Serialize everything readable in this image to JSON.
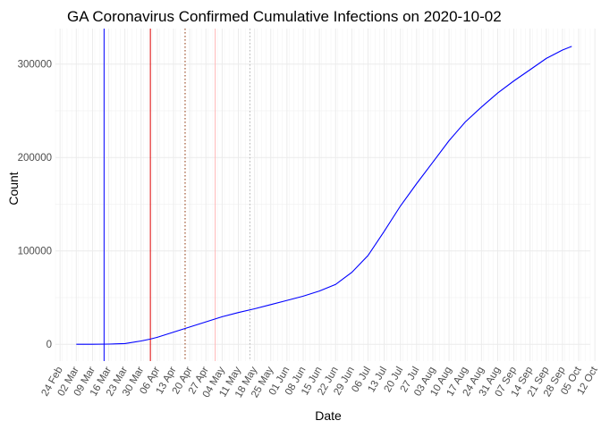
{
  "chart_data": {
    "type": "line",
    "title": "GA Coronavirus Confirmed Cumulative Infections on 2020-10-02",
    "xlabel": "Date",
    "ylabel": "Count",
    "x_ticks": [
      "24 Feb",
      "02 Mar",
      "09 Mar",
      "16 Mar",
      "23 Mar",
      "30 Mar",
      "06 Apr",
      "13 Apr",
      "20 Apr",
      "27 Apr",
      "04 May",
      "11 May",
      "18 May",
      "25 May",
      "01 Jun",
      "08 Jun",
      "15 Jun",
      "22 Jun",
      "29 Jun",
      "06 Jul",
      "13 Jul",
      "20 Jul",
      "27 Jul",
      "03 Aug",
      "10 Aug",
      "17 Aug",
      "24 Aug",
      "31 Aug",
      "07 Sep",
      "14 Sep",
      "21 Sep",
      "28 Sep",
      "05 Oct",
      "12 Oct"
    ],
    "xlim": [
      "2020-02-22",
      "2020-10-10"
    ],
    "y_ticks": [
      0,
      100000,
      200000,
      300000
    ],
    "y_tick_labels": [
      "0",
      "100000",
      "200000",
      "300000"
    ],
    "ylim": [
      -18000,
      338000
    ],
    "grid": true,
    "legend": "none",
    "series": [
      {
        "color": "#0000ff",
        "points": [
          [
            "2020-03-02",
            0
          ],
          [
            "2020-03-09",
            0
          ],
          [
            "2020-03-16",
            200
          ],
          [
            "2020-03-23",
            800
          ],
          [
            "2020-03-30",
            3500
          ],
          [
            "2020-04-03",
            5500
          ],
          [
            "2020-04-06",
            7500
          ],
          [
            "2020-04-13",
            13000
          ],
          [
            "2020-04-20",
            18500
          ],
          [
            "2020-04-27",
            24000
          ],
          [
            "2020-05-04",
            29500
          ],
          [
            "2020-05-11",
            34000
          ],
          [
            "2020-05-18",
            38000
          ],
          [
            "2020-05-25",
            42500
          ],
          [
            "2020-06-01",
            47000
          ],
          [
            "2020-06-08",
            51500
          ],
          [
            "2020-06-15",
            57000
          ],
          [
            "2020-06-22",
            64000
          ],
          [
            "2020-06-29",
            77000
          ],
          [
            "2020-07-06",
            95000
          ],
          [
            "2020-07-13",
            121000
          ],
          [
            "2020-07-20",
            148000
          ],
          [
            "2020-07-27",
            172000
          ],
          [
            "2020-08-03",
            195000
          ],
          [
            "2020-08-10",
            218000
          ],
          [
            "2020-08-17",
            238000
          ],
          [
            "2020-08-24",
            254000
          ],
          [
            "2020-08-31",
            269000
          ],
          [
            "2020-09-07",
            282000
          ],
          [
            "2020-09-14",
            294000
          ],
          [
            "2020-09-21",
            306000
          ],
          [
            "2020-09-28",
            315000
          ],
          [
            "2020-10-02",
            319000
          ]
        ]
      }
    ],
    "vertical_lines": [
      {
        "x": "2020-03-14",
        "color": "#0000ff",
        "style": "solid"
      },
      {
        "x": "2020-04-03",
        "color": "#dd0000",
        "style": "solid"
      },
      {
        "x": "2020-04-18",
        "color": "#a0522d",
        "style": "dotted"
      },
      {
        "x": "2020-05-01",
        "color": "#ffb6b6",
        "style": "solid"
      },
      {
        "x": "2020-05-16",
        "color": "#bbbbbb",
        "style": "dotted"
      }
    ]
  }
}
